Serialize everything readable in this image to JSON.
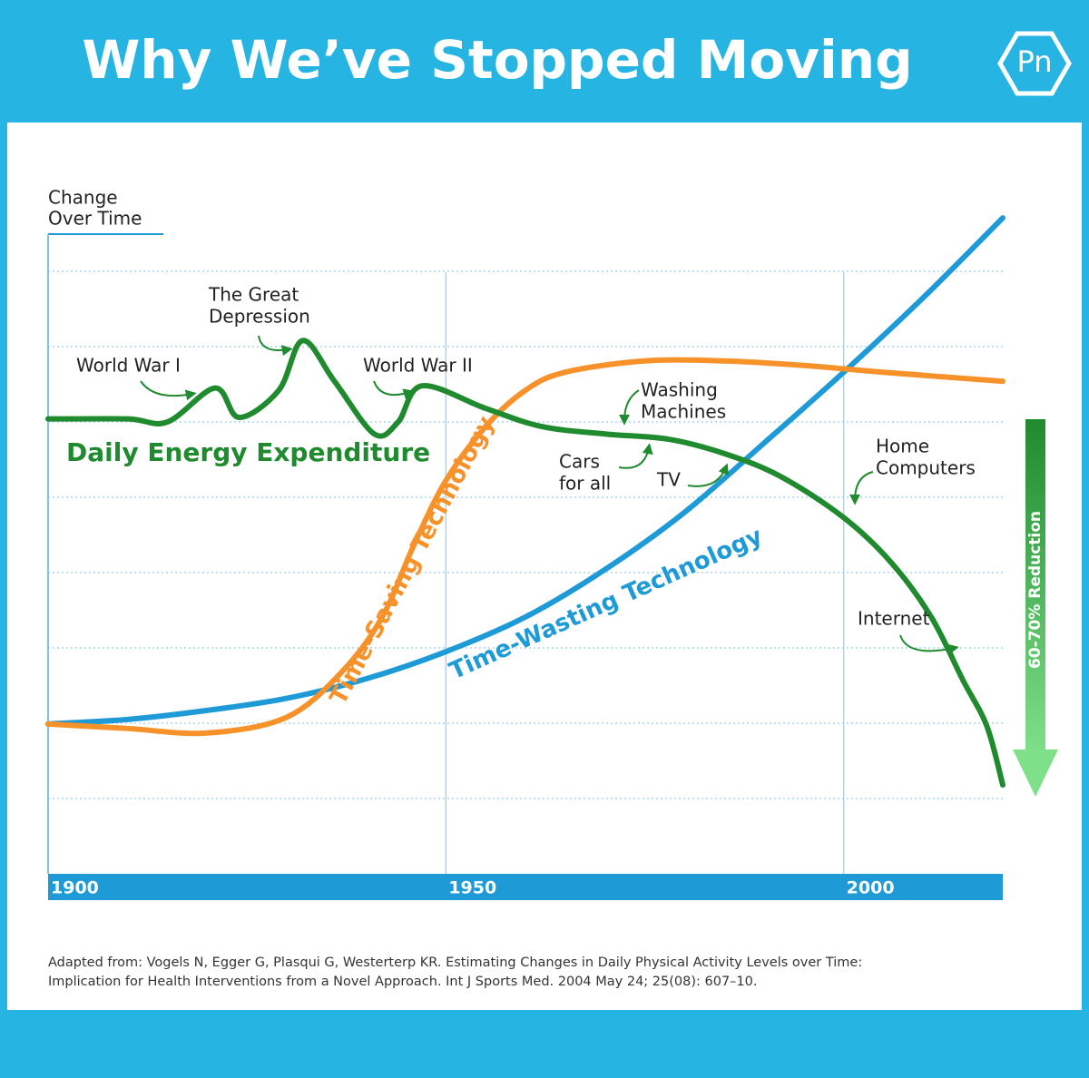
{
  "chart_data": {
    "type": "line",
    "title": "Why We’ve Stopped Moving",
    "logo": "Pn",
    "y_axis_label": [
      "Change",
      "Over Time"
    ],
    "xlim": [
      1900,
      2020
    ],
    "xticks": [
      1900,
      1950,
      2000
    ],
    "ylim": [
      0,
      8.8
    ],
    "yticks": [
      1,
      2,
      3,
      4,
      5,
      6,
      7,
      8
    ],
    "grid": true,
    "series": [
      {
        "name": "Daily Energy Expenditure",
        "color": "#1f8a2e",
        "x": [
          1900,
          1910,
          1915,
          1921,
          1924,
          1929,
          1932,
          1936,
          1941,
          1944,
          1947,
          1955,
          1962,
          1970,
          1978,
          1985,
          1992,
          2000,
          2006,
          2011,
          2015,
          2018,
          2020
        ],
        "values": [
          6.04,
          6.04,
          6.0,
          6.45,
          6.06,
          6.42,
          7.08,
          6.54,
          5.84,
          6.0,
          6.48,
          6.18,
          5.94,
          5.84,
          5.77,
          5.58,
          5.28,
          4.73,
          4.13,
          3.41,
          2.57,
          1.96,
          1.18
        ]
      },
      {
        "name": "Time-Saving Technology",
        "color": "#f7922a",
        "x": [
          1900,
          1910,
          1920,
          1930,
          1937,
          1942,
          1946,
          1950,
          1955,
          1960,
          1965,
          1975,
          1985,
          1995,
          2005,
          2020
        ],
        "values": [
          1.99,
          1.93,
          1.87,
          2.08,
          2.69,
          3.41,
          4.37,
          5.22,
          5.94,
          6.42,
          6.66,
          6.81,
          6.81,
          6.75,
          6.66,
          6.54
        ]
      },
      {
        "name": "Time-Wasting Technology",
        "color": "#1e9ad6",
        "x": [
          1900,
          1910,
          1920,
          1930,
          1940,
          1950,
          1960,
          1970,
          1980,
          1990,
          2000,
          2010,
          2020
        ],
        "values": [
          1.99,
          2.05,
          2.17,
          2.33,
          2.59,
          2.95,
          3.41,
          4.04,
          4.8,
          5.72,
          6.66,
          7.65,
          8.71
        ]
      }
    ],
    "annotations": [
      {
        "lines": [
          "World War I"
        ]
      },
      {
        "lines": [
          "The Great",
          "Depression"
        ]
      },
      {
        "lines": [
          "World War II"
        ]
      },
      {
        "lines": [
          "Washing",
          "Machines"
        ]
      },
      {
        "lines": [
          "Cars",
          "for all"
        ]
      },
      {
        "lines": [
          "TV"
        ]
      },
      {
        "lines": [
          "Home",
          "Computers"
        ]
      },
      {
        "lines": [
          "Internet"
        ]
      }
    ],
    "reduction_label": "60-70% Reduction",
    "source": [
      "Adapted from: Vogels N, Egger G, Plasqui G, Westerterp KR. Estimating Changes in Daily Physical Activity Levels over Time:",
      "Implication for Health Interventions from a Novel Approach. Int J Sports Med. 2004 May 24; 25(08): 607–10."
    ]
  }
}
